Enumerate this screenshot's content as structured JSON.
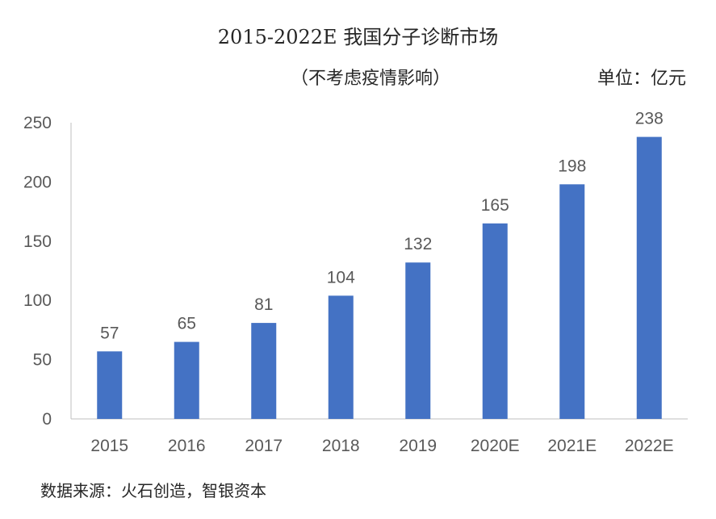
{
  "title_year": "2015-2022E",
  "title_text": "我国分子诊断市场",
  "subtitle": "（不考虑疫情影响）",
  "unit": "单位：亿元",
  "source": "数据来源：火石创造，智银资本",
  "colors": {
    "bar": "#4472C4",
    "axis": "#BFBFBF"
  },
  "chart_data": {
    "type": "bar",
    "categories": [
      "2015",
      "2016",
      "2017",
      "2018",
      "2019",
      "2020E",
      "2021E",
      "2022E"
    ],
    "values": [
      57,
      65,
      81,
      104,
      132,
      165,
      198,
      238
    ],
    "yticks": [
      "0",
      "50",
      "100",
      "150",
      "200",
      "250"
    ],
    "ylim": [
      0,
      250
    ],
    "grid": false
  }
}
